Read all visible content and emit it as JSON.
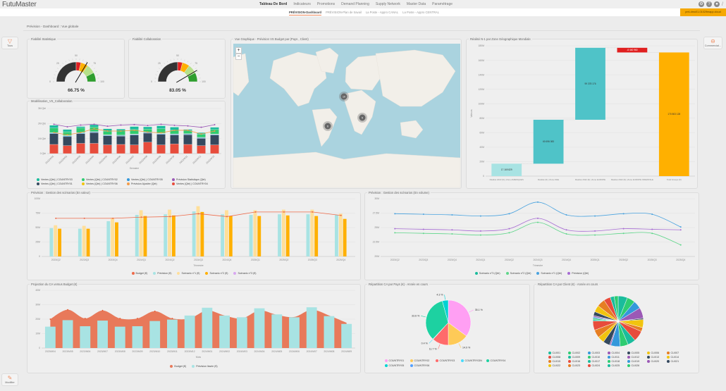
{
  "app": {
    "logo": "FutuMaster"
  },
  "menu": [
    "Tableau De Bord",
    "Indicateurs",
    "Promotions",
    "Demand Planning",
    "Supply Network",
    "Master Data",
    "Paramétrage"
  ],
  "subtabs": [
    "PRÉVISION-Dashboard",
    "PRÉVISION-Plan de travail",
    "La Poste - Appro CANAL",
    "La Poste - Appro CENTRAL"
  ],
  "header_icons": [
    "gear-icon",
    "help-icon",
    "user-icon",
    "expand-icon"
  ],
  "instance_badge": "pml-dmo01-0102/fmapp.cloud",
  "breadcrumb": "Prévision - Dashboard : Vue globale",
  "side_buttons": {
    "filter_label": "Tous",
    "commercial_label": "Commercial...",
    "edit_label": "Modifier"
  },
  "colors": {
    "accent": "#f08a5d",
    "badge": "#f5a800"
  },
  "map": {
    "title": "Vue Graphique - Prévision VS Budget par (Pays , Client)",
    "zoom_in": "+",
    "zoom_out": "−",
    "clusters": [
      "10",
      "5",
      "6"
    ]
  },
  "chart_data": [
    {
      "type": "gauge",
      "title": "Fiabilité Statistique",
      "value": 66.75,
      "value_label": "66.75 %",
      "ticks": [
        "0",
        "25",
        "50",
        "75",
        "100"
      ],
      "bands": [
        {
          "from": 0,
          "to": 50,
          "color": "#333333"
        },
        {
          "from": 50,
          "to": 58,
          "color": "#e02020"
        },
        {
          "from": 58,
          "to": 70,
          "color": "#ffb000"
        },
        {
          "from": 70,
          "to": 85,
          "color": "#b5e08a"
        },
        {
          "from": 85,
          "to": 100,
          "color": "#2e9e2e"
        }
      ]
    },
    {
      "type": "gauge",
      "title": "Fiabilité Collaboration",
      "value": 83.05,
      "value_label": "83.05 %",
      "ticks": [
        "0",
        "25",
        "50",
        "75",
        "100"
      ],
      "bands": [
        {
          "from": 0,
          "to": 50,
          "color": "#333333"
        },
        {
          "from": 50,
          "to": 58,
          "color": "#e02020"
        },
        {
          "from": 58,
          "to": 70,
          "color": "#ffb000"
        },
        {
          "from": 70,
          "to": 85,
          "color": "#b5e08a"
        },
        {
          "from": 85,
          "to": 100,
          "color": "#2e9e2e"
        }
      ]
    },
    {
      "type": "bar",
      "stacked": true,
      "title": "Modélisation_VS_Collaboration",
      "xlabel": "Semaine",
      "ylim": [
        0,
        3
      ],
      "yticks": [
        0,
        1,
        2,
        3
      ],
      "ytick_labels": [
        "0 Qté",
        "1M Qté",
        "2M Qté",
        "3M Qté"
      ],
      "categories": [
        "2023/W01",
        "2023/W02",
        "2023/W03",
        "2023/W04",
        "2023/W05",
        "2023/W06",
        "2023/W07",
        "2023/W08",
        "2023/W09",
        "2023/W10",
        "2023/W11",
        "2023/W12",
        "2023/W13"
      ],
      "series": [
        {
          "name": "Ventes (Qté) | COUNTRY04",
          "color": "#e74c3c",
          "values": [
            0.61,
            0.53,
            0.68,
            0.68,
            0.58,
            0.61,
            0.58,
            0.76,
            0.58,
            0.64,
            0.61,
            0.53,
            0.58
          ]
        },
        {
          "name": "Ventes (Qté) | COUNTRY01",
          "color": "#34495e",
          "values": [
            0.72,
            0.6,
            0.65,
            0.72,
            0.6,
            0.55,
            0.65,
            0.6,
            0.7,
            0.6,
            0.65,
            0.48,
            0.65
          ]
        },
        {
          "name": "Ventes (Qté) | COUNTRY05",
          "color": "#3498db",
          "values": [
            0.05,
            0.05,
            0.05,
            0.05,
            0.05,
            0.05,
            0.05,
            0.05,
            0.05,
            0.05,
            0.05,
            0.05,
            0.05
          ]
        },
        {
          "name": "Ventes (Qté) | COUNTRY06",
          "color": "#f1c40f",
          "values": [
            0.02,
            0.02,
            0.02,
            0.02,
            0.02,
            0.02,
            0.02,
            0.02,
            0.02,
            0.02,
            0.02,
            0.02,
            0.02
          ]
        },
        {
          "name": "Ventes (Qté) | COUNTRY02",
          "color": "#2ecc71",
          "values": [
            0.3,
            0.25,
            0.3,
            0.3,
            0.25,
            0.28,
            0.3,
            0.2,
            0.3,
            0.25,
            0.2,
            0.2,
            0.3
          ]
        },
        {
          "name": "Ventes (Qté) | COUNTRY03",
          "color": "#1abc9c",
          "values": [
            0.18,
            0.15,
            0.1,
            0.15,
            0.15,
            0.12,
            0.2,
            0.15,
            0.2,
            0.2,
            0.08,
            0.12,
            0.15
          ]
        }
      ],
      "lines": [
        {
          "name": "Prévision Statistique (Qté)",
          "color": "#9b59b6",
          "values": [
            1.95,
            1.78,
            1.9,
            1.95,
            1.82,
            1.9,
            1.93,
            1.87,
            1.95,
            1.88,
            1.84,
            1.75,
            1.92
          ]
        },
        {
          "name": "Prévision Ajustée (Qté)",
          "color": "#f39c4a",
          "values": [
            1.4,
            1.25,
            1.4,
            1.65,
            1.5,
            1.5,
            1.55,
            1.43,
            1.38,
            1.55,
            1.55,
            1.3,
            1.5
          ]
        }
      ],
      "legend": [
        {
          "name": "Ventes (Qté) | COUNTRY03",
          "color": "#1abc9c"
        },
        {
          "name": "Ventes (Qté) | COUNTRY02",
          "color": "#2ecc71"
        },
        {
          "name": "Ventes (Qté) | COUNTRY05",
          "color": "#3498db"
        },
        {
          "name": "Prévision Statistique (Qté)",
          "color": "#9b59b6"
        },
        {
          "name": "Ventes (Qté) | COUNTRY01",
          "color": "#34495e"
        },
        {
          "name": "Ventes (Qté) | COUNTRY06",
          "color": "#f1c40f"
        },
        {
          "name": "Prévision Ajustée (Qté)",
          "color": "#f39c4a"
        },
        {
          "name": "Ventes (Qté) | COUNTRY04",
          "color": "#e74c3c"
        }
      ]
    },
    {
      "type": "waterfall",
      "title": "Réalisé N-1 par Zone Géographique Mondiale",
      "ylabel": "Valeurs",
      "ylim": [
        0,
        180000000
      ],
      "yticks": [
        0,
        20000000,
        40000000,
        60000000,
        80000000,
        100000000,
        120000000,
        140000000,
        160000000,
        180000000
      ],
      "ytick_labels": [
        "0",
        "20M",
        "40M",
        "60M",
        "80M",
        "100M",
        "120M",
        "140M",
        "160M",
        "180M"
      ],
      "categories": [
        "Réalisé 2022 (€) | Zone AMERIQUES",
        "Réalisé (€) | Zone ASIE",
        "Réalisé 2022 (€) | Zone EUROPE",
        "Réalisé 2022 (€) | Zone EUROPE ORIENTALE",
        "Total Groupe (€)"
      ],
      "values": [
        17169829,
        60696083,
        99378176,
        -6440960,
        170803128
      ],
      "data_labels": [
        "17 169 829",
        "60 696 083",
        "99 378 176",
        "-6 440 960",
        "170 803 128"
      ],
      "colors": [
        "#a8e3e3",
        "#4fc3c8",
        "#4fc3c8",
        "#e02020",
        "#ffb000"
      ]
    },
    {
      "type": "bar",
      "title": "Prévision : Gestion des scénarios (En valeur)",
      "xlabel": "Trimestre",
      "ylim": [
        0,
        100
      ],
      "yticks": [
        0,
        25,
        50,
        75,
        100
      ],
      "ytick_labels": [
        "0",
        "25M",
        "50M",
        "75M",
        "100M"
      ],
      "categories": [
        "2023/Q2",
        "2023/Q3",
        "2023/Q4",
        "2024/Q1",
        "2024/Q2",
        "2024/Q3",
        "2024/Q4",
        "2025/Q1",
        "2025/Q2",
        "2025/Q3",
        "2025/Q4"
      ],
      "series": [
        {
          "name": "Prévision (€)",
          "color": "#a8e3e3",
          "values": [
            49,
            48,
            61,
            72,
            73,
            78,
            73,
            72,
            73,
            73,
            72
          ]
        },
        {
          "name": "Scénario n°1 (€)",
          "color": "#ffdf9a",
          "values": [
            54,
            53,
            67,
            80,
            81,
            87,
            80,
            80,
            81,
            81,
            74
          ]
        },
        {
          "name": "Scénario n°2 (€)",
          "color": "#ffb000",
          "values": [
            48,
            48,
            59,
            70,
            71,
            77,
            70,
            70,
            71,
            70,
            65
          ]
        }
      ],
      "lines": [
        {
          "name": "Budget (€)",
          "color": "#ee6a4a",
          "values": [
            66,
            66,
            66,
            68,
            69,
            74,
            69,
            77,
            77,
            77,
            71
          ]
        }
      ],
      "legend": [
        {
          "name": "Budget (€)",
          "color": "#ee6a4a"
        },
        {
          "name": "Prévision (€)",
          "color": "#a8e3e3"
        },
        {
          "name": "Scénario n°1 (€)",
          "color": "#ffdf9a"
        },
        {
          "name": "Scénario n°2 (€)",
          "color": "#ffb000"
        },
        {
          "name": "Scénario n°3 (€)",
          "color": "#d9a8f0"
        }
      ]
    },
    {
      "type": "line",
      "title": "Prévision : Gestion des scénarios (En volume)",
      "xlabel": "Trimestre",
      "ylim": [
        20,
        30
      ],
      "yticks": [
        20,
        22.5,
        25,
        27.5,
        30
      ],
      "ytick_labels": [
        "20M",
        "22.5M",
        "25M",
        "27.5M",
        "30M"
      ],
      "categories": [
        "2023/Q2",
        "2023/Q3",
        "2023/Q4",
        "2024/Q1",
        "2024/Q2",
        "2024/Q3",
        "2024/Q4",
        "2025/Q1",
        "2025/Q2",
        "2025/Q3",
        "2025/Q4"
      ],
      "lines": [
        {
          "name": "Scénario n°1 (Qté)",
          "color": "#4aa3df",
          "values": [
            27.4,
            27.3,
            27.2,
            27.0,
            27.4,
            29.4,
            27.2,
            27.0,
            27.4,
            27.3,
            25.1
          ]
        },
        {
          "name": "Prévision (Qté)",
          "color": "#a66bd3",
          "values": [
            24.8,
            24.7,
            24.6,
            24.4,
            24.8,
            26.6,
            24.6,
            24.4,
            24.8,
            24.7,
            24.6
          ]
        },
        {
          "name": "Scénario n°2 (Qté)",
          "color": "#5fd68a",
          "values": [
            24.1,
            24.0,
            23.9,
            23.7,
            24.1,
            25.9,
            23.9,
            23.7,
            24.0,
            24.0,
            22.0
          ]
        }
      ],
      "legend": [
        {
          "name": "Scénario n°3 (Qté)",
          "color": "#1abc9c"
        },
        {
          "name": "Scénario n°2 (Qté)",
          "color": "#5fd68a"
        },
        {
          "name": "Scénario n°1 (Qté)",
          "color": "#4aa3df"
        },
        {
          "name": "Prévision (Qté)",
          "color": "#a66bd3"
        }
      ]
    },
    {
      "type": "area+bar",
      "title": "Projection du CA versus Budget (€)",
      "xlabel": "Mois",
      "ylim": [
        0,
        40
      ],
      "yticks": [
        0,
        10,
        20,
        30,
        40
      ],
      "ytick_labels": [
        "0",
        "10M",
        "20M",
        "30M",
        "40M"
      ],
      "categories": [
        "2023/M04",
        "2023/M05",
        "2023/M06",
        "2023/M07",
        "2023/M08",
        "2023/M09",
        "2023/M10",
        "2023/M11",
        "2023/M12",
        "2024/M01",
        "2024/M02",
        "2024/M03",
        "2024/M04",
        "2024/M05",
        "2024/M06",
        "2024/M07",
        "2024/M08",
        "2024/M09"
      ],
      "area": {
        "name": "Budget (€)",
        "color": "#e8795a",
        "values": [
          20,
          26.5,
          20.5,
          26,
          20.5,
          20.5,
          25.5,
          20.5,
          20.5,
          26,
          22.5,
          20.5,
          26,
          23,
          21.5,
          26.5,
          22.5,
          17.5
        ]
      },
      "series": [
        {
          "name": "Prévision lissée (€)",
          "color": "#a8e3e3",
          "values": [
            14.8,
            19.3,
            15.1,
            19,
            14.8,
            15.1,
            18.7,
            19.7,
            22.5,
            27.9,
            22.5,
            21.3,
            27.5,
            23.3,
            21.3,
            28.2,
            22.1,
            16.7
          ]
        }
      ],
      "legend": [
        {
          "name": "Budget (€)",
          "color": "#e8795a"
        },
        {
          "name": "Prévision lissée (€)",
          "color": "#a8e3e3"
        }
      ]
    },
    {
      "type": "pie",
      "title": "Répartition CA par Pays (€) - Année en cours",
      "categories": [
        "COUNTRY01",
        "COUNTRY02",
        "COUNTRY03",
        "COUNTRY03N",
        "COUNTRY04",
        "COUNTRY05",
        "COUNTRY06"
      ],
      "values": [
        35.1,
        14.9,
        11.7,
        0.4,
        33.6,
        4.3,
        0.0
      ],
      "data_labels": [
        "35.1 %",
        "14.9 %",
        "11.7 %",
        "0.4 %",
        "33.6 %",
        "4.3 %",
        ""
      ],
      "colors": [
        "#ff9ff3",
        "#feca57",
        "#ff6b6b",
        "#48dbfb",
        "#1dd1a1",
        "#00d2d3",
        "#54a0ff"
      ]
    },
    {
      "type": "pie",
      "title": "Répartition CA par Client (€) - Année en cours",
      "categories": [
        "CLI001",
        "CLI002",
        "CLI003",
        "CLI004",
        "CLI005",
        "CLI006",
        "CLI007",
        "CLI008",
        "CLI009",
        "CLI010",
        "CLI011",
        "CLI012",
        "CLI013",
        "CLI014",
        "CLI015",
        "CLI016",
        "CLI017",
        "CLI018",
        "CLI019",
        "CLI020",
        "CLI021",
        "CLI022",
        "CLI023",
        "CLI024",
        "CLI025",
        "CLI026"
      ],
      "values": [
        7,
        6,
        6,
        8,
        1,
        6,
        3,
        8,
        6,
        6,
        7,
        1,
        5,
        5,
        6,
        7,
        1,
        1,
        1,
        1,
        3,
        5,
        6,
        5,
        3,
        3
      ],
      "colors": [
        "#1abc9c",
        "#2ecc71",
        "#3498db",
        "#9b59b6",
        "#34495e",
        "#f1c40f",
        "#e67e22",
        "#e74c3c"
      ]
    }
  ]
}
